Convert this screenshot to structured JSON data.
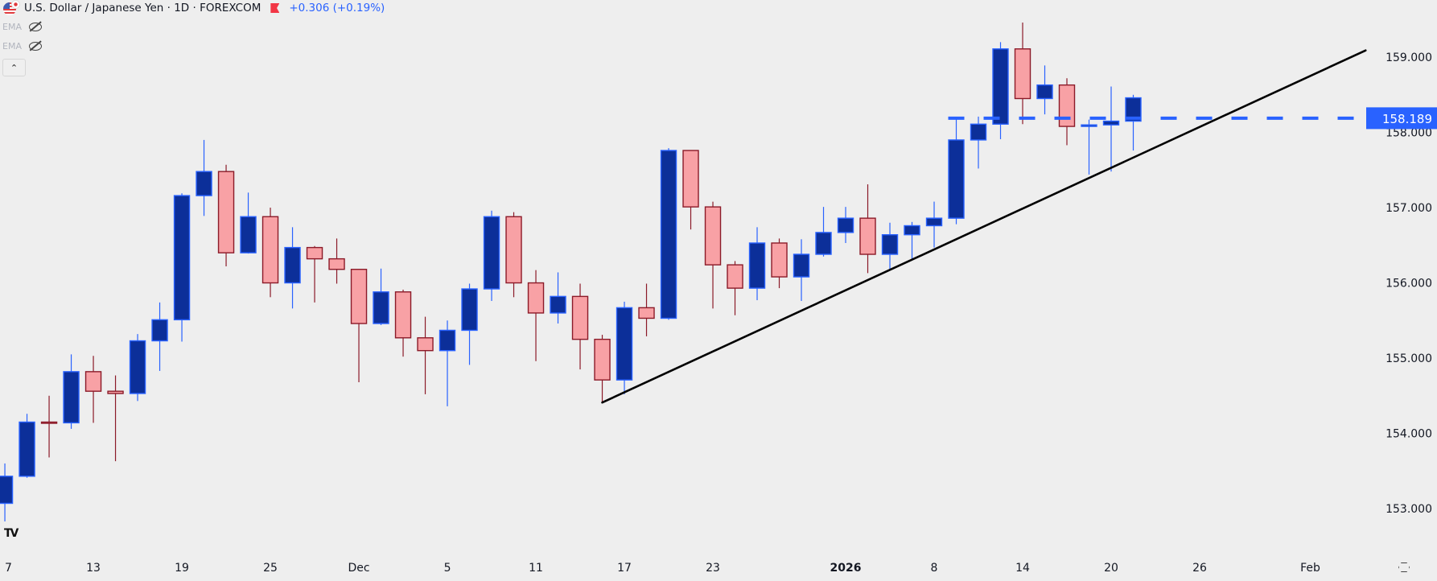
{
  "header": {
    "title": "U.S. Dollar / Japanese Yen · 1D · FOREXCOM",
    "change": "+0.306 (+0.19%)",
    "change_color": "#2962ff",
    "indicators": [
      {
        "label": "EMA",
        "icon": "eye-slash-icon"
      },
      {
        "label": "EMA",
        "icon": "eye-slash-icon"
      }
    ],
    "collapse_icon": "chevron-up-icon"
  },
  "colors": {
    "background": "#eeeeee",
    "up_body": "#0c2f99",
    "up_border": "#2962ff",
    "down_body": "#f8a1a5",
    "down_border": "#8b1a28",
    "trendline": "#000000",
    "price_line": "#2962ff"
  },
  "chart_data": {
    "type": "candlestick",
    "title": "",
    "xlabel": "",
    "ylabel": "",
    "ylim": [
      152.38,
      159.76
    ],
    "y_ticks": [
      "153.000",
      "154.000",
      "155.000",
      "156.000",
      "157.000",
      "158.000",
      "159.000"
    ],
    "x_ticks": [
      {
        "label": "7",
        "bar": 0
      },
      {
        "label": "13",
        "bar": 4
      },
      {
        "label": "19",
        "bar": 8
      },
      {
        "label": "25",
        "bar": 12
      },
      {
        "label": "Dec",
        "bar": 16
      },
      {
        "label": "5",
        "bar": 20
      },
      {
        "label": "11",
        "bar": 24
      },
      {
        "label": "17",
        "bar": 28
      },
      {
        "label": "23",
        "bar": 32
      },
      {
        "label": "2026",
        "bar": 38
      },
      {
        "label": "8",
        "bar": 42
      },
      {
        "label": "14",
        "bar": 46
      },
      {
        "label": "20",
        "bar": 50
      },
      {
        "label": "26",
        "bar": 54
      },
      {
        "label": "Feb",
        "bar": 59
      }
    ],
    "xlim_bars": [
      -0.22,
      61.6
    ],
    "ohlc": [
      [
        153.07,
        153.6,
        152.83,
        153.43
      ],
      [
        153.43,
        154.26,
        153.41,
        154.15
      ],
      [
        154.15,
        154.5,
        153.68,
        154.15
      ],
      [
        154.14,
        155.05,
        154.06,
        154.82
      ],
      [
        154.82,
        155.03,
        154.14,
        154.56
      ],
      [
        154.56,
        154.77,
        153.63,
        154.53
      ],
      [
        154.53,
        155.32,
        154.43,
        155.23
      ],
      [
        155.23,
        155.74,
        154.83,
        155.51
      ],
      [
        155.51,
        157.19,
        155.22,
        157.16
      ],
      [
        157.16,
        157.9,
        156.89,
        157.48
      ],
      [
        157.48,
        157.57,
        156.22,
        156.4
      ],
      [
        156.4,
        157.2,
        156.39,
        156.88
      ],
      [
        156.88,
        157.0,
        155.81,
        156.0
      ],
      [
        156.0,
        156.74,
        155.66,
        156.47
      ],
      [
        156.47,
        156.49,
        155.74,
        156.32
      ],
      [
        156.32,
        156.59,
        155.99,
        156.18
      ],
      [
        156.18,
        156.18,
        154.68,
        155.46
      ],
      [
        155.46,
        156.19,
        155.44,
        155.88
      ],
      [
        155.88,
        155.91,
        155.02,
        155.27
      ],
      [
        155.27,
        155.55,
        154.52,
        155.1
      ],
      [
        155.1,
        155.5,
        154.36,
        155.37
      ],
      [
        155.37,
        155.99,
        154.91,
        155.92
      ],
      [
        155.92,
        156.96,
        155.76,
        156.88
      ],
      [
        156.88,
        156.94,
        155.81,
        156.0
      ],
      [
        156.0,
        156.17,
        154.96,
        155.6
      ],
      [
        155.6,
        156.14,
        155.46,
        155.82
      ],
      [
        155.82,
        155.99,
        154.85,
        155.25
      ],
      [
        155.25,
        155.31,
        154.4,
        154.71
      ],
      [
        154.71,
        155.75,
        154.52,
        155.67
      ],
      [
        155.67,
        155.99,
        155.29,
        155.53
      ],
      [
        155.53,
        157.79,
        155.51,
        157.76
      ],
      [
        157.76,
        157.76,
        156.71,
        157.01
      ],
      [
        157.01,
        157.08,
        155.66,
        156.24
      ],
      [
        156.24,
        156.29,
        155.57,
        155.93
      ],
      [
        155.93,
        156.74,
        155.77,
        156.53
      ],
      [
        156.53,
        156.59,
        155.93,
        156.08
      ],
      [
        156.08,
        156.58,
        155.76,
        156.38
      ],
      [
        156.38,
        157.01,
        156.35,
        156.67
      ],
      [
        156.67,
        157.01,
        156.53,
        156.86
      ],
      [
        156.86,
        157.31,
        156.13,
        156.38
      ],
      [
        156.38,
        156.8,
        156.18,
        156.64
      ],
      [
        156.64,
        156.81,
        156.3,
        156.76
      ],
      [
        156.76,
        157.08,
        156.47,
        156.86
      ],
      [
        156.86,
        158.19,
        156.78,
        157.9
      ],
      [
        157.9,
        158.21,
        157.52,
        158.11
      ],
      [
        158.11,
        159.2,
        157.91,
        159.11
      ],
      [
        159.11,
        159.46,
        158.11,
        158.45
      ],
      [
        158.45,
        158.89,
        158.24,
        158.63
      ],
      [
        158.63,
        158.72,
        157.83,
        158.08
      ],
      [
        158.08,
        158.17,
        157.44,
        158.1
      ],
      [
        158.1,
        158.61,
        157.48,
        158.15
      ],
      [
        158.15,
        158.5,
        157.76,
        158.46
      ]
    ],
    "trendline": {
      "from": {
        "bar": 27,
        "price": 154.41
      },
      "to": {
        "bar": 61.5,
        "price": 159.09
      }
    },
    "price_line": {
      "from_bar": 43,
      "price": 158.189,
      "label": "158.189",
      "style": "dashed"
    },
    "grid": false
  }
}
